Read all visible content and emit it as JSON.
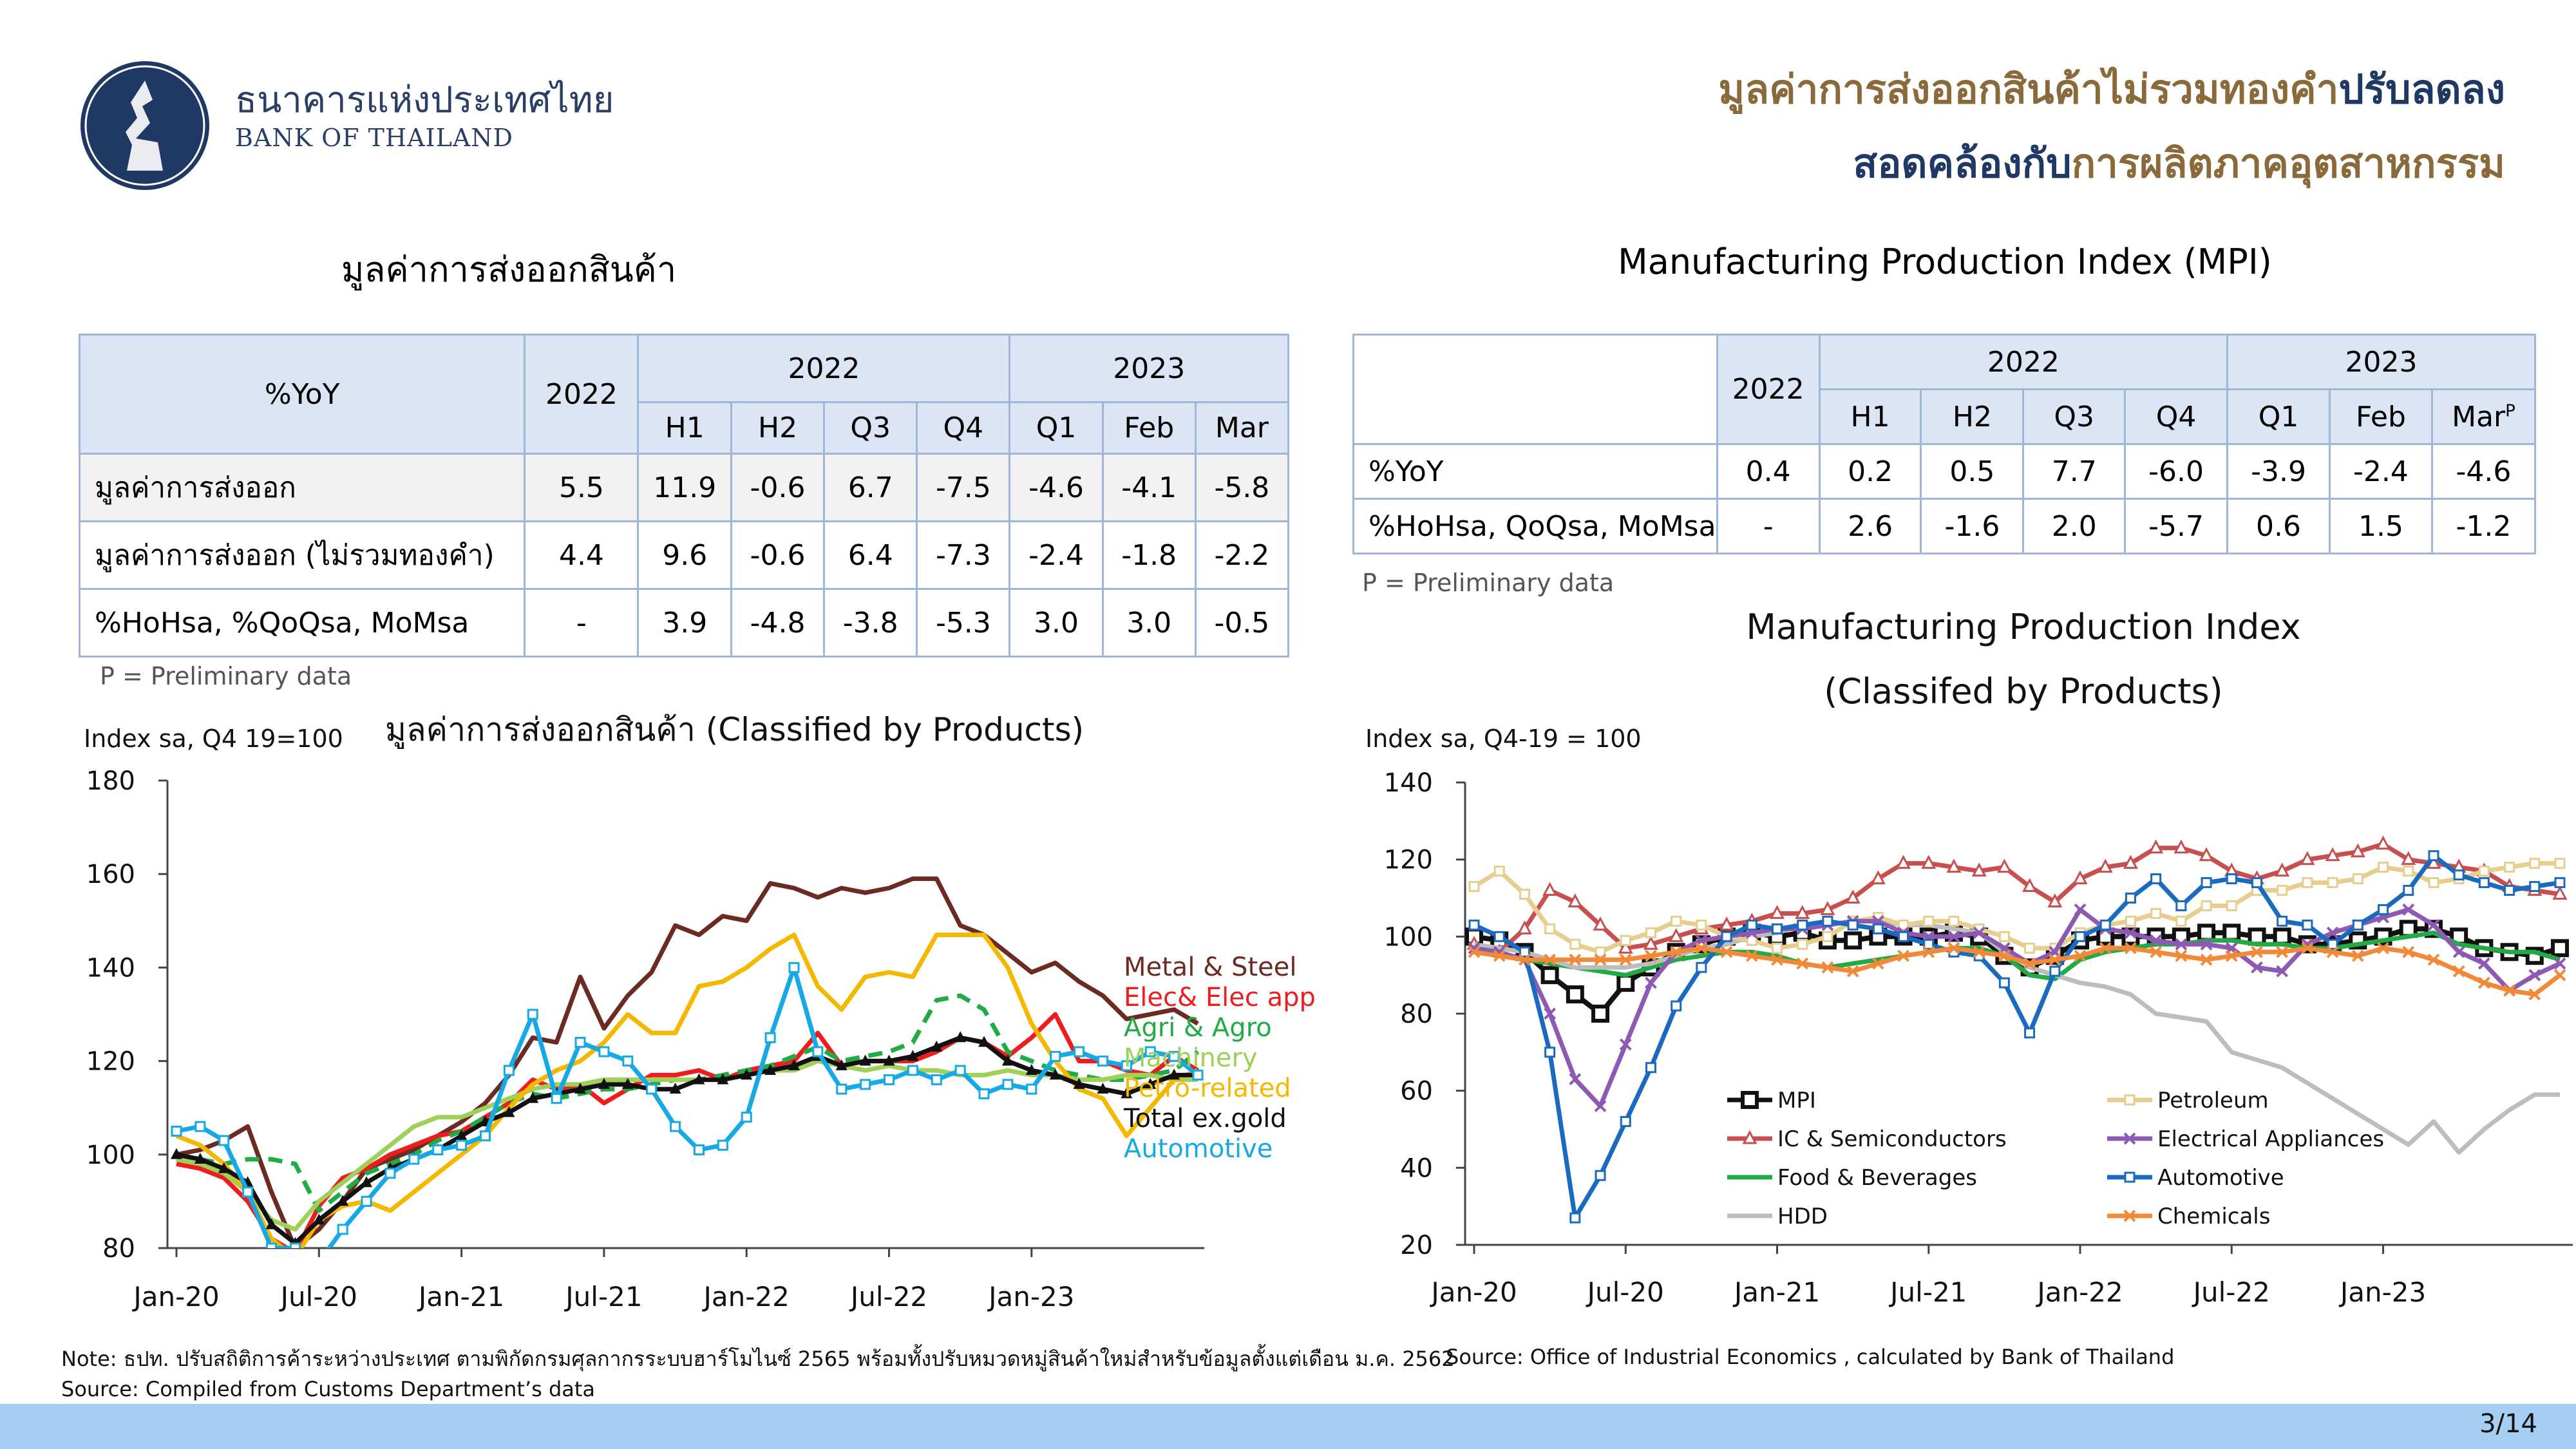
{
  "header": {
    "logo_th": "ธนาคารแห่งประเทศไทย",
    "logo_en": "BANK OF THAILAND",
    "title_line1_a": "มูลค่าการส่งออกสินค้าไม่รวมทองคำ",
    "title_line1_b": "ปรับลดลง",
    "title_line2_a": "สอดคล้องกับ",
    "title_line2_b": "การผลิตภาคอุตสาหกรรม",
    "color_brown": "#8a6a3a",
    "color_navy": "#1f3864"
  },
  "left_table": {
    "title": "มูลค่าการส่งออกสินค้า",
    "corner": "%YoY",
    "year_col": "2022",
    "group_2022": "2022",
    "group_2023": "2023",
    "sub_headers": [
      "H1",
      "H2",
      "Q3",
      "Q4",
      "Q1",
      "Feb",
      "Mar"
    ],
    "rows": [
      {
        "label": "มูลค่าการส่งออก",
        "values": [
          "5.5",
          "11.9",
          "-0.6",
          "6.7",
          "-7.5",
          "-4.6",
          "-4.1",
          "-5.8"
        ]
      },
      {
        "label": "มูลค่าการส่งออก (ไม่รวมทองคำ)",
        "values": [
          "4.4",
          "9.6",
          "-0.6",
          "6.4",
          "-7.3",
          "-2.4",
          "-1.8",
          "-2.2"
        ]
      },
      {
        "label": "%HoHsa, %QoQsa, MoMsa",
        "values": [
          "-",
          "3.9",
          "-4.8",
          "-3.8",
          "-5.3",
          "3.0",
          "3.0",
          "-0.5"
        ]
      }
    ],
    "note": "P = Preliminary data"
  },
  "right_table": {
    "title": "Manufacturing Production Index (MPI)",
    "year_col": "2022",
    "group_2022": "2022",
    "group_2023": "2023",
    "sub_headers": [
      "H1",
      "H2",
      "Q3",
      "Q4",
      "Q1",
      "Feb",
      "Mar"
    ],
    "mar_sup": "P",
    "rows": [
      {
        "label": "%YoY",
        "values": [
          "0.4",
          "0.2",
          "0.5",
          "7.7",
          "-6.0",
          "-3.9",
          "-2.4",
          "-4.6"
        ]
      },
      {
        "label": "%HoHsa, QoQsa, MoMsa",
        "values": [
          "-",
          "2.6",
          "-1.6",
          "2.0",
          "-5.7",
          "0.6",
          "1.5",
          "-1.2"
        ]
      }
    ],
    "note": "P = Preliminary data"
  },
  "chart_data": [
    {
      "type": "line",
      "title": "มูลค่าการส่งออกสินค้า (Classified by Products)",
      "ylabel": "Index sa, Q4 19=100",
      "ylim": [
        80,
        180
      ],
      "yticks": [
        80,
        100,
        120,
        140,
        160,
        180
      ],
      "x_tick_labels": [
        "Jan-20",
        "Jul-20",
        "Jan-21",
        "Jul-21",
        "Jan-22",
        "Jul-22",
        "Jan-23"
      ],
      "x_start": "Jan-20",
      "x_end": "Mar-23",
      "legend_position": "right",
      "series": [
        {
          "name": "Metal & Steel",
          "color": "#6b2b22",
          "values": [
            100,
            101,
            103,
            106,
            92,
            80,
            84,
            90,
            97,
            99,
            101,
            104,
            107,
            111,
            117,
            125,
            124,
            138,
            127,
            134,
            139,
            149,
            147,
            151,
            150,
            158,
            157,
            155,
            157,
            156,
            157,
            159,
            159,
            149,
            147,
            143,
            139,
            141,
            137,
            134,
            129,
            130,
            131,
            128
          ]
        },
        {
          "name": "Elec& Elec app",
          "color": "#ee1c1c",
          "values": [
            98,
            97,
            95,
            90,
            82,
            79,
            89,
            95,
            97,
            100,
            102,
            104,
            105,
            108,
            111,
            116,
            114,
            115,
            111,
            114,
            117,
            117,
            118,
            116,
            118,
            119,
            120,
            126,
            119,
            120,
            120,
            120,
            122,
            125,
            124,
            121,
            125,
            130,
            120,
            120,
            118,
            117,
            121,
            118
          ]
        },
        {
          "name": "Agri & Agro",
          "color": "#22aa44",
          "dashed": true,
          "values": [
            99,
            99,
            98,
            99,
            99,
            98,
            88,
            92,
            96,
            98,
            100,
            103,
            105,
            108,
            111,
            113,
            112,
            113,
            114,
            114,
            115,
            116,
            116,
            117,
            118,
            119,
            121,
            123,
            120,
            121,
            122,
            124,
            133,
            134,
            131,
            122,
            120,
            118,
            117,
            116,
            116,
            117,
            118,
            122
          ]
        },
        {
          "name": "Machinery",
          "color": "#9ed05a",
          "values": [
            99,
            98,
            96,
            92,
            86,
            84,
            90,
            94,
            98,
            102,
            106,
            108,
            108,
            110,
            112,
            114,
            115,
            115,
            116,
            116,
            116,
            116,
            116,
            116,
            117,
            118,
            118,
            120,
            119,
            118,
            119,
            118,
            118,
            117,
            117,
            118,
            117,
            117,
            116,
            116,
            117,
            117,
            116,
            116
          ]
        },
        {
          "name": "Petro-related",
          "color": "#f5b800",
          "values": [
            104,
            102,
            98,
            92,
            82,
            78,
            86,
            89,
            90,
            88,
            92,
            96,
            100,
            104,
            110,
            115,
            118,
            120,
            124,
            130,
            126,
            126,
            136,
            137,
            140,
            144,
            147,
            136,
            131,
            138,
            139,
            138,
            147,
            147,
            147,
            140,
            128,
            120,
            114,
            112,
            104,
            110,
            116,
            118
          ]
        },
        {
          "name": "Total ex.gold",
          "color": "#111111",
          "marker": "triangle",
          "values": [
            100,
            99,
            97,
            94,
            85,
            81,
            86,
            90,
            94,
            97,
            99,
            101,
            104,
            107,
            109,
            112,
            113,
            114,
            115,
            115,
            114,
            114,
            116,
            116,
            117,
            118,
            119,
            121,
            119,
            120,
            120,
            121,
            123,
            125,
            124,
            120,
            118,
            117,
            115,
            114,
            113,
            115,
            117,
            117
          ]
        },
        {
          "name": "Automotive",
          "color": "#16a9e6",
          "marker": "square",
          "values": [
            105,
            106,
            103,
            92,
            80,
            80,
            77,
            84,
            90,
            96,
            99,
            101,
            102,
            104,
            118,
            130,
            112,
            124,
            122,
            120,
            114,
            106,
            101,
            102,
            108,
            125,
            140,
            122,
            114,
            115,
            116,
            118,
            116,
            118,
            113,
            115,
            114,
            121,
            122,
            120,
            119,
            122,
            121,
            117
          ]
        }
      ]
    },
    {
      "type": "line",
      "title": "Manufacturing Production Index (Classifed by Products)",
      "title_line1": "Manufacturing Production Index",
      "title_line2": "(Classifed by Products)",
      "ylabel": "Index sa, Q4-19 = 100",
      "ylim": [
        20,
        140
      ],
      "yticks": [
        20,
        40,
        60,
        80,
        100,
        120,
        140
      ],
      "x_tick_labels": [
        "Jan-20",
        "Jul-20",
        "Jan-21",
        "Jul-21",
        "Jan-22",
        "Jul-22",
        "Jan-23"
      ],
      "x_start": "Jan-20",
      "x_end": "Mar-23",
      "legend_position": "bottom",
      "series": [
        {
          "name": "MPI",
          "color": "#111111",
          "marker": "square-bold",
          "values": [
            100,
            99,
            96,
            90,
            85,
            80,
            88,
            92,
            96,
            98,
            100,
            101,
            100,
            101,
            99,
            99,
            100,
            100,
            100,
            101,
            100,
            95,
            92,
            95,
            99,
            100,
            100,
            100,
            100,
            101,
            101,
            100,
            100,
            98,
            98,
            99,
            100,
            102,
            102,
            100,
            97,
            96,
            95,
            97
          ]
        },
        {
          "name": "IC & Semiconductors",
          "color": "#c74f4f",
          "marker": "triangle-open",
          "values": [
            98,
            96,
            102,
            112,
            109,
            103,
            97,
            98,
            100,
            102,
            103,
            104,
            106,
            106,
            107,
            110,
            115,
            119,
            119,
            118,
            117,
            118,
            113,
            109,
            115,
            118,
            119,
            123,
            123,
            121,
            117,
            115,
            117,
            120,
            121,
            122,
            124,
            120,
            119,
            118,
            117,
            113,
            112,
            111
          ]
        },
        {
          "name": "Food & Beverages",
          "color": "#22aa44",
          "values": [
            96,
            95,
            94,
            93,
            92,
            91,
            90,
            92,
            94,
            95,
            96,
            96,
            95,
            93,
            92,
            93,
            94,
            95,
            96,
            97,
            97,
            95,
            90,
            89,
            94,
            96,
            97,
            98,
            98,
            99,
            99,
            98,
            98,
            97,
            97,
            98,
            99,
            100,
            101,
            98,
            97,
            96,
            96,
            94
          ]
        },
        {
          "name": "HDD",
          "color": "#bdbdbd",
          "values": [
            98,
            97,
            96,
            94,
            92,
            92,
            92,
            93,
            95,
            97,
            98,
            100,
            101,
            103,
            103,
            104,
            104,
            103,
            103,
            102,
            101,
            96,
            92,
            90,
            88,
            87,
            85,
            80,
            79,
            78,
            70,
            68,
            66,
            62,
            58,
            54,
            50,
            46,
            52,
            44,
            50,
            55,
            59,
            59
          ]
        },
        {
          "name": "Petroleum",
          "color": "#e6ce8e",
          "marker": "square-open",
          "values": [
            113,
            117,
            111,
            102,
            98,
            96,
            99,
            101,
            104,
            103,
            100,
            99,
            97,
            98,
            100,
            104,
            105,
            103,
            104,
            104,
            102,
            100,
            97,
            97,
            101,
            103,
            104,
            106,
            104,
            108,
            108,
            112,
            112,
            114,
            114,
            115,
            118,
            117,
            114,
            115,
            117,
            118,
            119,
            119
          ]
        },
        {
          "name": "Electrical Appliances",
          "color": "#8e59b2",
          "marker": "x",
          "values": [
            97,
            96,
            94,
            80,
            63,
            56,
            72,
            88,
            96,
            99,
            100,
            101,
            102,
            102,
            103,
            104,
            104,
            101,
            100,
            100,
            101,
            97,
            93,
            96,
            107,
            102,
            101,
            99,
            98,
            98,
            97,
            92,
            91,
            98,
            101,
            103,
            105,
            107,
            103,
            96,
            93,
            86,
            90,
            93
          ]
        },
        {
          "name": "Automotive",
          "color": "#1a6bc0",
          "marker": "square-open",
          "values": [
            103,
            100,
            96,
            70,
            27,
            38,
            52,
            66,
            82,
            92,
            100,
            103,
            102,
            103,
            104,
            103,
            102,
            100,
            98,
            96,
            95,
            88,
            75,
            91,
            100,
            103,
            110,
            115,
            108,
            114,
            115,
            114,
            104,
            103,
            98,
            103,
            107,
            112,
            121,
            116,
            114,
            112,
            113,
            114
          ]
        },
        {
          "name": "Chemicals",
          "color": "#f08a39",
          "marker": "x",
          "values": [
            96,
            95,
            94,
            94,
            94,
            94,
            94,
            95,
            96,
            97,
            96,
            95,
            94,
            93,
            92,
            91,
            93,
            95,
            96,
            97,
            96,
            95,
            93,
            94,
            95,
            97,
            97,
            96,
            95,
            94,
            95,
            96,
            96,
            97,
            96,
            95,
            97,
            96,
            94,
            91,
            88,
            86,
            85,
            90
          ]
        }
      ]
    }
  ],
  "footer": {
    "note": "Note: ธปท. ปรับสถิติการค้าระหว่างประเทศ ตามพิกัดกรมศุลกากรระบบฮาร์โมไนซ์ 2565 พร้อมทั้งปรับหมวดหมู่สินค้าใหม่สำหรับข้อมูลตั้งแต่เดือน ม.ค. 2562",
    "source_left": "Source: Compiled from Customs Department’s data",
    "source_right": "Source: Office of Industrial Economics , calculated by Bank of Thailand",
    "page": "3/14"
  }
}
